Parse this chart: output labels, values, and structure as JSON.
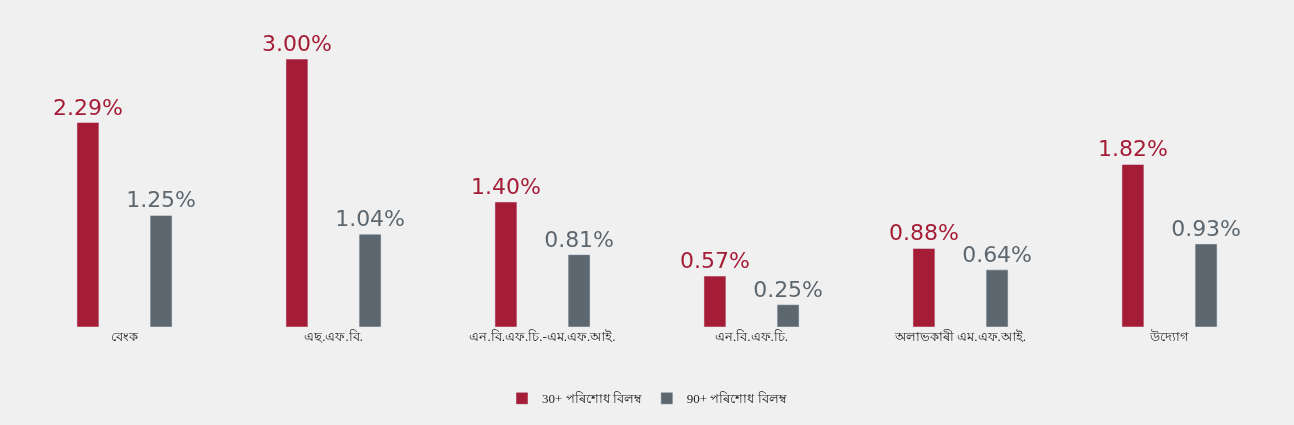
{
  "chart_data": {
    "type": "bar",
    "categories": [
      "বেংক",
      "এছ.এফ.বি.",
      "এন.বি.এফ.চি.-এম.এফ.আই.",
      "এন.বি.এফ.চি.",
      "অলাভকাৰী এম.এফ.আই.",
      "উদ্যোগ"
    ],
    "series": [
      {
        "name": "30+ পৰিশোধ বিলম্ব",
        "color": "#a51c36",
        "values": [
          2.29,
          3.0,
          1.4,
          0.57,
          0.88,
          1.82
        ],
        "value_labels": [
          "2.29%",
          "3.00%",
          "1.40%",
          "0.57%",
          "0.88%",
          "1.82%"
        ]
      },
      {
        "name": "90+ পৰিশোধ বিলম্ব",
        "color": "#5c6770",
        "values": [
          1.25,
          1.04,
          0.81,
          0.25,
          0.64,
          0.93
        ],
        "value_labels": [
          "1.25%",
          "1.04%",
          "0.81%",
          "0.25%",
          "0.64%",
          "0.93%"
        ]
      }
    ],
    "legend": "bottom",
    "grid": false,
    "tick_labels": "x"
  }
}
